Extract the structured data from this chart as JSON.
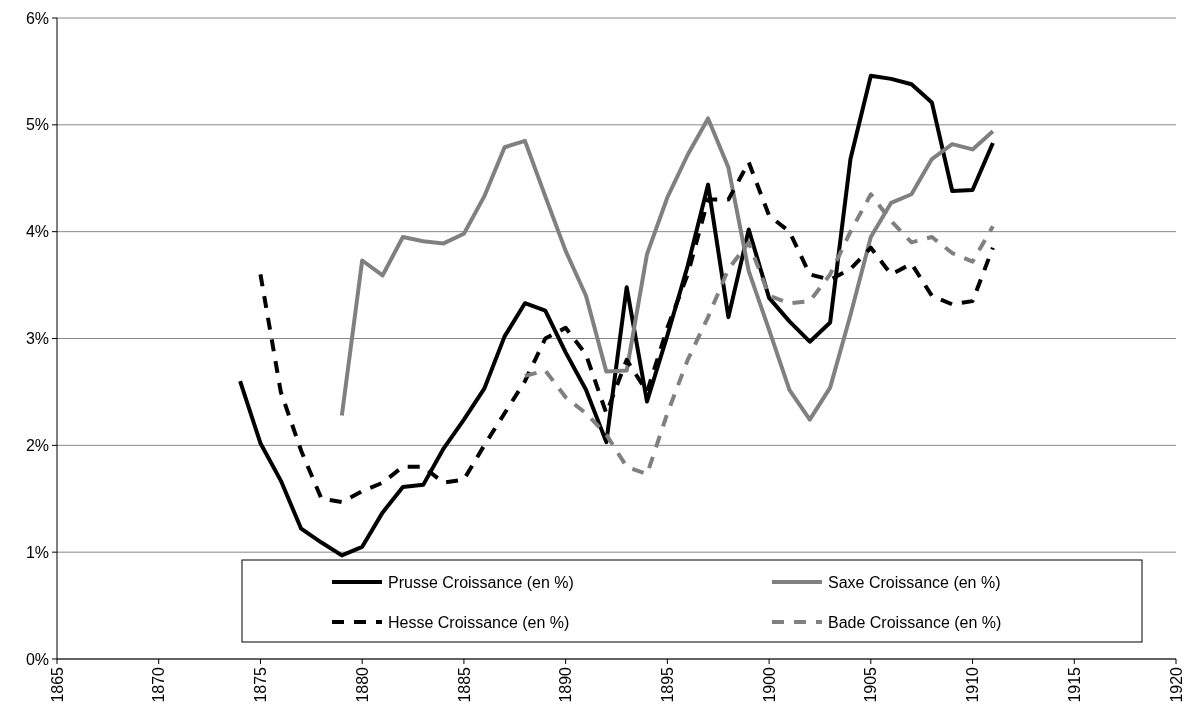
{
  "chart_data": {
    "type": "line",
    "xlim": [
      1865,
      1920
    ],
    "xticks": [
      1865,
      1870,
      1875,
      1880,
      1885,
      1890,
      1895,
      1900,
      1905,
      1910,
      1915,
      1920
    ],
    "ylim": [
      0,
      6
    ],
    "yticks": [
      {
        "value": 0,
        "label": "0%"
      },
      {
        "value": 1,
        "label": "1%"
      },
      {
        "value": 2,
        "label": "2%"
      },
      {
        "value": 3,
        "label": "3%"
      },
      {
        "value": 4,
        "label": "4%"
      },
      {
        "value": 5,
        "label": "5%"
      },
      {
        "value": 6,
        "label": "6%"
      }
    ],
    "grid": "y",
    "legend": "bottom",
    "series": [
      {
        "name": "Prusse Croissance  (en %)",
        "color": "#000000",
        "line_style": "solid",
        "x": [
          1874,
          1875,
          1876,
          1877,
          1878,
          1879,
          1880,
          1881,
          1882,
          1883,
          1884,
          1885,
          1886,
          1887,
          1888,
          1889,
          1890,
          1891,
          1892,
          1893,
          1894,
          1895,
          1896,
          1897,
          1898,
          1899,
          1900,
          1901,
          1902,
          1903,
          1904,
          1905,
          1906,
          1907,
          1908,
          1909,
          1910,
          1911
        ],
        "values": [
          2.6,
          2.02,
          1.67,
          1.22,
          1.09,
          0.97,
          1.05,
          1.37,
          1.61,
          1.63,
          1.97,
          2.24,
          2.53,
          3.02,
          3.33,
          3.26,
          2.87,
          2.52,
          2.03,
          3.48,
          2.41,
          3.03,
          3.68,
          4.44,
          3.2,
          4.02,
          3.38,
          3.16,
          2.97,
          3.15,
          4.68,
          5.46,
          5.43,
          5.38,
          5.21,
          4.38,
          4.39,
          4.83
        ]
      },
      {
        "name": "Saxe Croissance  (en %)",
        "color": "#808080",
        "line_style": "solid",
        "x": [
          1879,
          1880,
          1881,
          1882,
          1883,
          1884,
          1885,
          1886,
          1887,
          1888,
          1889,
          1890,
          1891,
          1892,
          1893,
          1894,
          1895,
          1896,
          1897,
          1898,
          1899,
          1900,
          1901,
          1902,
          1903,
          1904,
          1905,
          1906,
          1907,
          1908,
          1909,
          1910,
          1911
        ],
        "values": [
          2.28,
          3.73,
          3.59,
          3.95,
          3.91,
          3.89,
          3.98,
          4.33,
          4.79,
          4.85,
          4.33,
          3.82,
          3.4,
          2.69,
          2.7,
          3.79,
          4.32,
          4.72,
          5.06,
          4.6,
          3.63,
          3.08,
          2.52,
          2.24,
          2.54,
          3.22,
          3.95,
          4.27,
          4.35,
          4.68,
          4.82,
          4.77,
          4.94
        ]
      },
      {
        "name": "Hesse Croissance  (en %)",
        "color": "#000000",
        "line_style": "dashed",
        "x": [
          1875,
          1876,
          1877,
          1878,
          1879,
          1880,
          1881,
          1882,
          1883,
          1884,
          1885,
          1886,
          1887,
          1888,
          1889,
          1890,
          1891,
          1892,
          1893,
          1894,
          1895,
          1896,
          1897,
          1898,
          1899,
          1900,
          1901,
          1902,
          1903,
          1904,
          1905,
          1906,
          1907,
          1908,
          1909,
          1910,
          1911
        ],
        "values": [
          3.6,
          2.5,
          1.95,
          1.5,
          1.47,
          1.57,
          1.65,
          1.8,
          1.8,
          1.65,
          1.68,
          2.0,
          2.3,
          2.6,
          3.0,
          3.1,
          2.85,
          2.3,
          2.8,
          2.5,
          3.1,
          3.6,
          4.3,
          4.3,
          4.65,
          4.15,
          4.0,
          3.6,
          3.55,
          3.65,
          3.85,
          3.6,
          3.7,
          3.4,
          3.32,
          3.35,
          3.85
        ]
      },
      {
        "name": "Bade Croissance  (en %)",
        "color": "#808080",
        "line_style": "dashed",
        "x": [
          1888,
          1889,
          1890,
          1891,
          1892,
          1893,
          1894,
          1895,
          1896,
          1897,
          1898,
          1899,
          1900,
          1901,
          1902,
          1903,
          1904,
          1905,
          1906,
          1907,
          1908,
          1909,
          1910,
          1911
        ],
        "values": [
          2.65,
          2.7,
          2.45,
          2.3,
          2.1,
          1.8,
          1.73,
          2.3,
          2.8,
          3.2,
          3.65,
          3.9,
          3.4,
          3.33,
          3.35,
          3.6,
          4.0,
          4.35,
          4.1,
          3.9,
          3.95,
          3.8,
          3.72,
          4.05
        ]
      }
    ]
  }
}
